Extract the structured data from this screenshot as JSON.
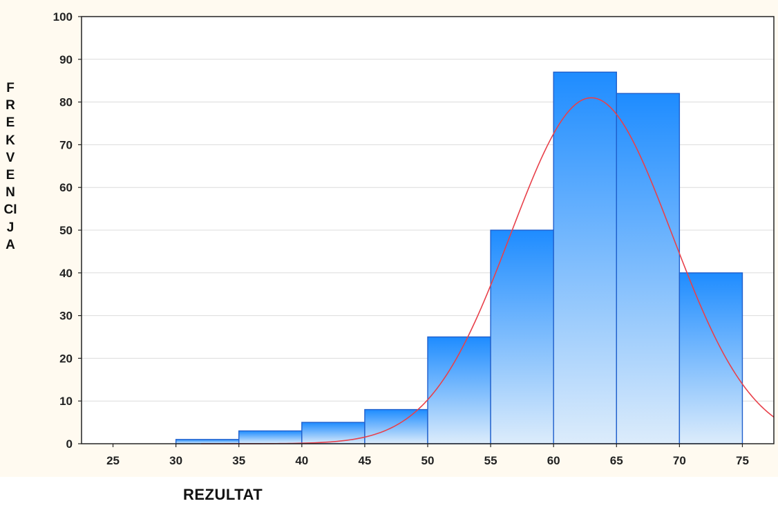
{
  "chart_data": {
    "type": "bar",
    "xlabel": "REZULTAT",
    "ylabel": "FREKVENCIJA",
    "ylim": [
      0,
      100
    ],
    "xlim": [
      22.5,
      77.5
    ],
    "x_ticks": [
      "25",
      "30",
      "35",
      "40",
      "45",
      "50",
      "55",
      "60",
      "65",
      "70",
      "75"
    ],
    "y_ticks": [
      "0",
      "10",
      "20",
      "30",
      "40",
      "50",
      "60",
      "70",
      "80",
      "90",
      "100"
    ],
    "bins": [
      {
        "from": 30,
        "to": 35,
        "value": 1
      },
      {
        "from": 35,
        "to": 40,
        "value": 3
      },
      {
        "from": 40,
        "to": 45,
        "value": 5
      },
      {
        "from": 45,
        "to": 50,
        "value": 8
      },
      {
        "from": 50,
        "to": 55,
        "value": 25
      },
      {
        "from": 55,
        "to": 60,
        "value": 50
      },
      {
        "from": 60,
        "to": 65,
        "value": 87
      },
      {
        "from": 65,
        "to": 70,
        "value": 82
      },
      {
        "from": 70,
        "to": 75,
        "value": 40
      }
    ],
    "normal_curve": {
      "mean": 63,
      "peak": 81,
      "sd": 6.4,
      "color": "#e8404a"
    },
    "bar_color_top": "#1e8cff",
    "bar_color_bottom": "#dcecfb",
    "bar_edge_color": "#1f5fcc",
    "grid": true
  }
}
